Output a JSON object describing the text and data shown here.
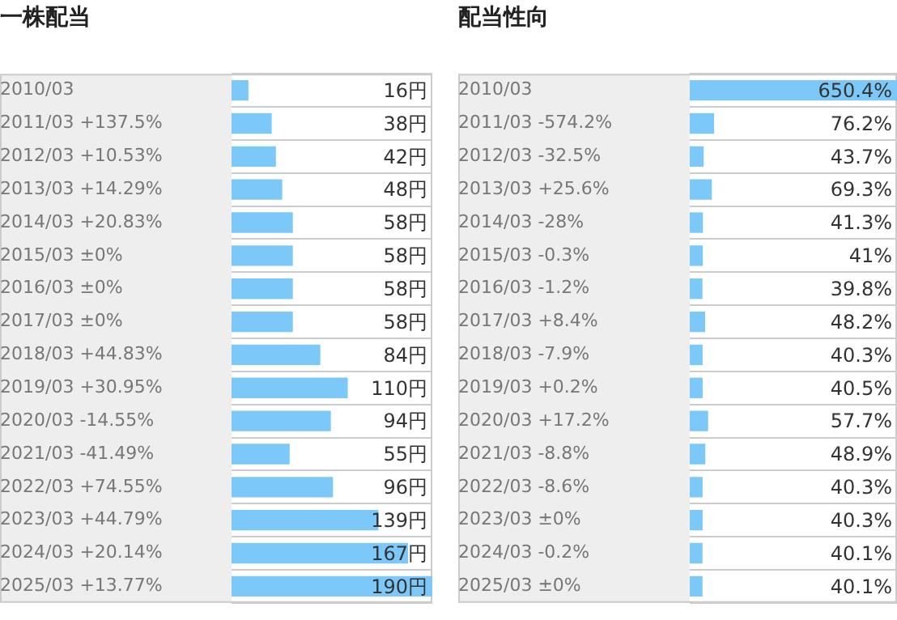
{
  "chart_data": [
    {
      "type": "bar",
      "orientation": "horizontal",
      "title": "一株配当",
      "color": "#7cc8f8",
      "grid": "y",
      "legend": false,
      "tick_labels": "y",
      "categories": [
        "2010/03",
        "2011/03 +137.5%",
        "2012/03 +10.53%",
        "2013/03 +14.29%",
        "2014/03 +20.83%",
        "2015/03 ±0%",
        "2016/03 ±0%",
        "2017/03 ±0%",
        "2018/03 +44.83%",
        "2019/03 +30.95%",
        "2020/03 -14.55%",
        "2021/03 -41.49%",
        "2022/03 +74.55%",
        "2023/03 +44.79%",
        "2024/03 +20.14%",
        "2025/03 +13.77%"
      ],
      "values": [
        16,
        38,
        42,
        48,
        58,
        58,
        58,
        58,
        84,
        110,
        94,
        55,
        96,
        139,
        167,
        190
      ],
      "value_labels": [
        "16円",
        "38円",
        "42円",
        "48円",
        "58円",
        "58円",
        "58円",
        "58円",
        "84円",
        "110円",
        "94円",
        "55円",
        "96円",
        "139円",
        "167円",
        "190円"
      ]
    },
    {
      "type": "bar",
      "orientation": "horizontal",
      "title": "配当性向",
      "color": "#7cc8f8",
      "grid": "y",
      "legend": false,
      "tick_labels": "y",
      "categories": [
        "2010/03",
        "2011/03 -574.2%",
        "2012/03 -32.5%",
        "2013/03 +25.6%",
        "2014/03 -28%",
        "2015/03 -0.3%",
        "2016/03 -1.2%",
        "2017/03 +8.4%",
        "2018/03 -7.9%",
        "2019/03 +0.2%",
        "2020/03 +17.2%",
        "2021/03 -8.8%",
        "2022/03 -8.6%",
        "2023/03 ±0%",
        "2024/03 -0.2%",
        "2025/03 ±0%"
      ],
      "values": [
        650.4,
        76.2,
        43.7,
        69.3,
        41.3,
        41,
        39.8,
        48.2,
        40.3,
        40.5,
        57.7,
        48.9,
        40.3,
        40.3,
        40.1,
        40.1
      ],
      "value_labels": [
        "650.4%",
        "76.2%",
        "43.7%",
        "69.3%",
        "41.3%",
        "41%",
        "39.8%",
        "48.2%",
        "40.3%",
        "40.5%",
        "57.7%",
        "48.9%",
        "40.3%",
        "40.3%",
        "40.1%",
        "40.1%"
      ]
    }
  ]
}
